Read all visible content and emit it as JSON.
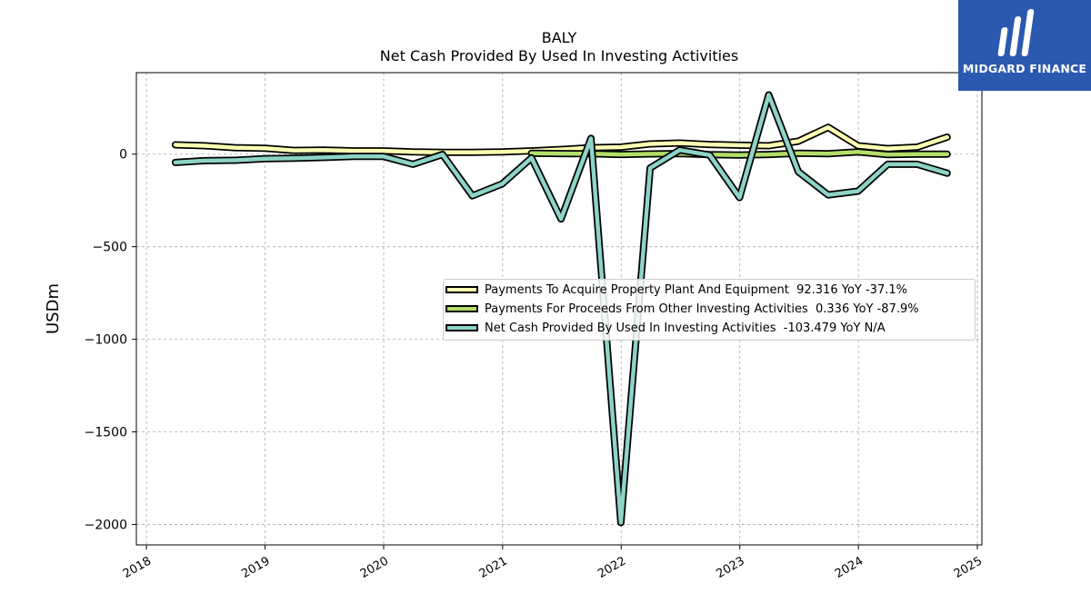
{
  "header": {
    "ticker": "BALY",
    "title": "Net Cash Provided By Used In Investing Activities"
  },
  "logo": {
    "text": "MIDGARD FINANCE"
  },
  "colors": {
    "series_0": "#ffffb3",
    "series_1": "#b3de69",
    "series_2": "#8dd3c7",
    "edge": "#000000",
    "grid": "#aaaaaa",
    "logo_bg": "#2b59b0"
  },
  "chart_data": {
    "type": "line",
    "title": "BALY\nNet Cash Provided By Used In Investing Activities",
    "xlabel": "",
    "ylabel": "USDm",
    "xlim": [
      "2017-12-01",
      "2025-01-15"
    ],
    "ylim": [
      -2110,
      440
    ],
    "yticks": [
      0,
      -500,
      -1000,
      -1500,
      -2000
    ],
    "ytick_labels": [
      "0",
      "−500",
      "−1000",
      "−1500",
      "−2000"
    ],
    "xtick_labels": [
      "2018",
      "2019",
      "2020",
      "2021",
      "2022",
      "2023",
      "2024",
      "2025"
    ],
    "grid": true,
    "legend_position": "center-right",
    "series": [
      {
        "name": "Payments To Acquire Property Plant And Equipment  92.316 YoY -37.1%",
        "x": [
          "2018-03-31",
          "2018-06-30",
          "2018-09-30",
          "2018-12-31",
          "2019-03-31",
          "2019-06-30",
          "2019-09-30",
          "2019-12-31",
          "2020-03-31",
          "2020-06-30",
          "2020-09-30",
          "2020-12-31",
          "2021-03-31",
          "2021-06-30",
          "2021-09-30",
          "2021-12-31",
          "2022-03-31",
          "2022-06-30",
          "2022-09-30",
          "2022-12-31",
          "2023-03-31",
          "2023-06-30",
          "2023-09-30",
          "2023-12-31",
          "2024-03-31",
          "2024-06-30",
          "2024-09-30"
        ],
        "values": [
          50,
          45,
          35,
          32,
          20,
          22,
          18,
          18,
          12,
          10,
          10,
          12,
          18,
          25,
          35,
          38,
          55,
          60,
          52,
          48,
          45,
          70,
          145,
          45,
          30,
          38,
          92
        ]
      },
      {
        "name": "Payments For Proceeds From Other Investing Activities  0.336 YoY -87.9%",
        "x": [
          "2021-03-31",
          "2021-06-30",
          "2021-09-30",
          "2021-12-31",
          "2022-03-31",
          "2022-06-30",
          "2022-09-30",
          "2022-12-31",
          "2023-03-31",
          "2023-06-30",
          "2023-09-30",
          "2023-12-31",
          "2024-03-31",
          "2024-06-30",
          "2024-09-30"
        ],
        "values": [
          5,
          3,
          2,
          -2,
          1,
          3,
          -3,
          -5,
          -2,
          5,
          2,
          12,
          -3,
          0,
          0.3
        ]
      },
      {
        "name": "Net Cash Provided By Used In Investing Activities  -103.479 YoY N/A",
        "x": [
          "2018-03-31",
          "2018-06-30",
          "2018-09-30",
          "2018-12-31",
          "2019-03-31",
          "2019-06-30",
          "2019-09-30",
          "2019-12-31",
          "2020-03-31",
          "2020-06-30",
          "2020-09-30",
          "2020-12-31",
          "2021-03-31",
          "2021-06-30",
          "2021-09-30",
          "2021-12-31",
          "2022-03-31",
          "2022-06-30",
          "2022-09-30",
          "2022-12-31",
          "2023-03-31",
          "2023-06-30",
          "2023-09-30",
          "2023-12-31",
          "2024-03-31",
          "2024-06-30",
          "2024-09-30"
        ],
        "values": [
          -45,
          -35,
          -33,
          -25,
          -22,
          -18,
          -12,
          -12,
          -55,
          -2,
          -225,
          -160,
          -20,
          -350,
          85,
          -1990,
          -75,
          22,
          -5,
          -235,
          320,
          -95,
          -220,
          -200,
          -55,
          -55,
          -103
        ]
      }
    ]
  }
}
